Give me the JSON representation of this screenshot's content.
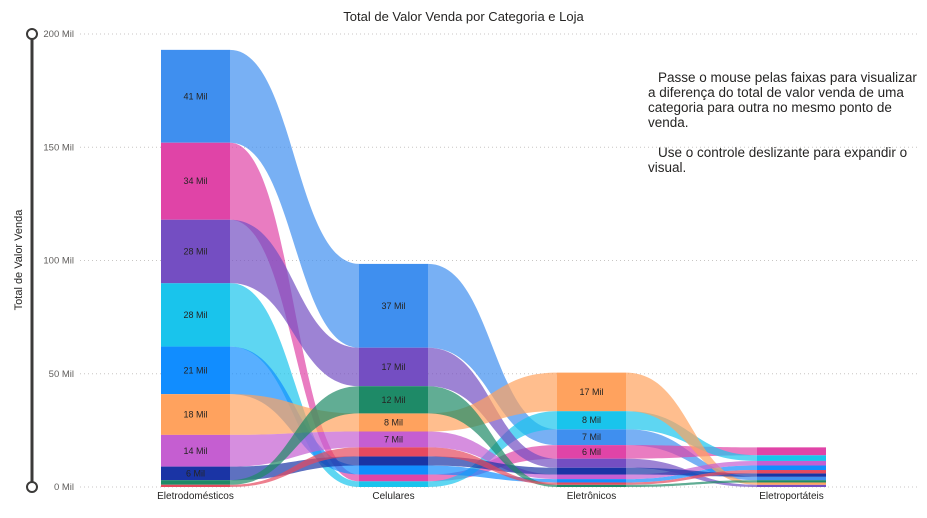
{
  "chart_data": {
    "type": "bar",
    "subtype": "ribbon",
    "title": "Total de Valor Venda por Categoria e Loja",
    "xlabel": "",
    "ylabel": "Total de Valor Venda",
    "ylim": [
      0,
      200000
    ],
    "yticks": [
      "0 Mil",
      "50 Mil",
      "100 Mil",
      "150 Mil",
      "200 Mil"
    ],
    "grid": true,
    "categories": [
      "Eletrodomésticos",
      "Celulares",
      "Eletrônicos",
      "Eletroportáteis"
    ],
    "series": [
      {
        "color": "#3f8fef",
        "values": [
          41000,
          37000,
          7000,
          1500
        ]
      },
      {
        "color": "#e044a7",
        "values": [
          34000,
          3000,
          6000,
          3500
        ]
      },
      {
        "color": "#19c4ec",
        "values": [
          28000,
          2500,
          8000,
          2500
        ]
      },
      {
        "color": "#744ec2",
        "values": [
          28000,
          17000,
          4000,
          1000
        ]
      },
      {
        "color": "#118dff",
        "values": [
          21000,
          4000,
          1500,
          2000
        ]
      },
      {
        "color": "#ffa25e",
        "values": [
          18000,
          8000,
          17000,
          1000
        ]
      },
      {
        "color": "#c55ed1",
        "values": [
          14000,
          7000,
          2000,
          2000
        ]
      },
      {
        "color": "#1a34a5",
        "values": [
          6000,
          4000,
          3000,
          1500
        ]
      },
      {
        "color": "#1e8a67",
        "values": [
          2000,
          12000,
          1000,
          1000
        ]
      },
      {
        "color": "#e6495e",
        "values": [
          1000,
          4000,
          1000,
          1500
        ]
      }
    ],
    "data_labels": [
      {
        "cat": 0,
        "series": 0,
        "text": "41 Mil"
      },
      {
        "cat": 0,
        "series": 1,
        "text": "34 Mil"
      },
      {
        "cat": 0,
        "series": 2,
        "text": "28 Mil"
      },
      {
        "cat": 0,
        "series": 3,
        "text": "28 Mil"
      },
      {
        "cat": 0,
        "series": 4,
        "text": "21 Mil"
      },
      {
        "cat": 0,
        "series": 5,
        "text": "18 Mil"
      },
      {
        "cat": 0,
        "series": 6,
        "text": "14 Mil"
      },
      {
        "cat": 0,
        "series": 7,
        "text": "6 Mil"
      },
      {
        "cat": 1,
        "series": 0,
        "text": "37 Mil"
      },
      {
        "cat": 1,
        "series": 3,
        "text": "17 Mil"
      },
      {
        "cat": 1,
        "series": 8,
        "text": "12 Mil"
      },
      {
        "cat": 1,
        "series": 5,
        "text": "8 Mil"
      },
      {
        "cat": 1,
        "series": 6,
        "text": "7 Mil"
      },
      {
        "cat": 2,
        "series": 5,
        "text": "17 Mil"
      },
      {
        "cat": 2,
        "series": 2,
        "text": "8 Mil"
      },
      {
        "cat": 2,
        "series": 0,
        "text": "7 Mil"
      },
      {
        "cat": 2,
        "series": 1,
        "text": "6 Mil"
      }
    ],
    "slider_labels": {
      "top": "",
      "bottom": ""
    }
  },
  "help_text": [
    "Passe o mouse pelas faixas para visualizar a diferença do total de valor venda de uma categoria para outra no mesmo ponto de venda.",
    "Use o controle deslizante para expandir o visual."
  ]
}
